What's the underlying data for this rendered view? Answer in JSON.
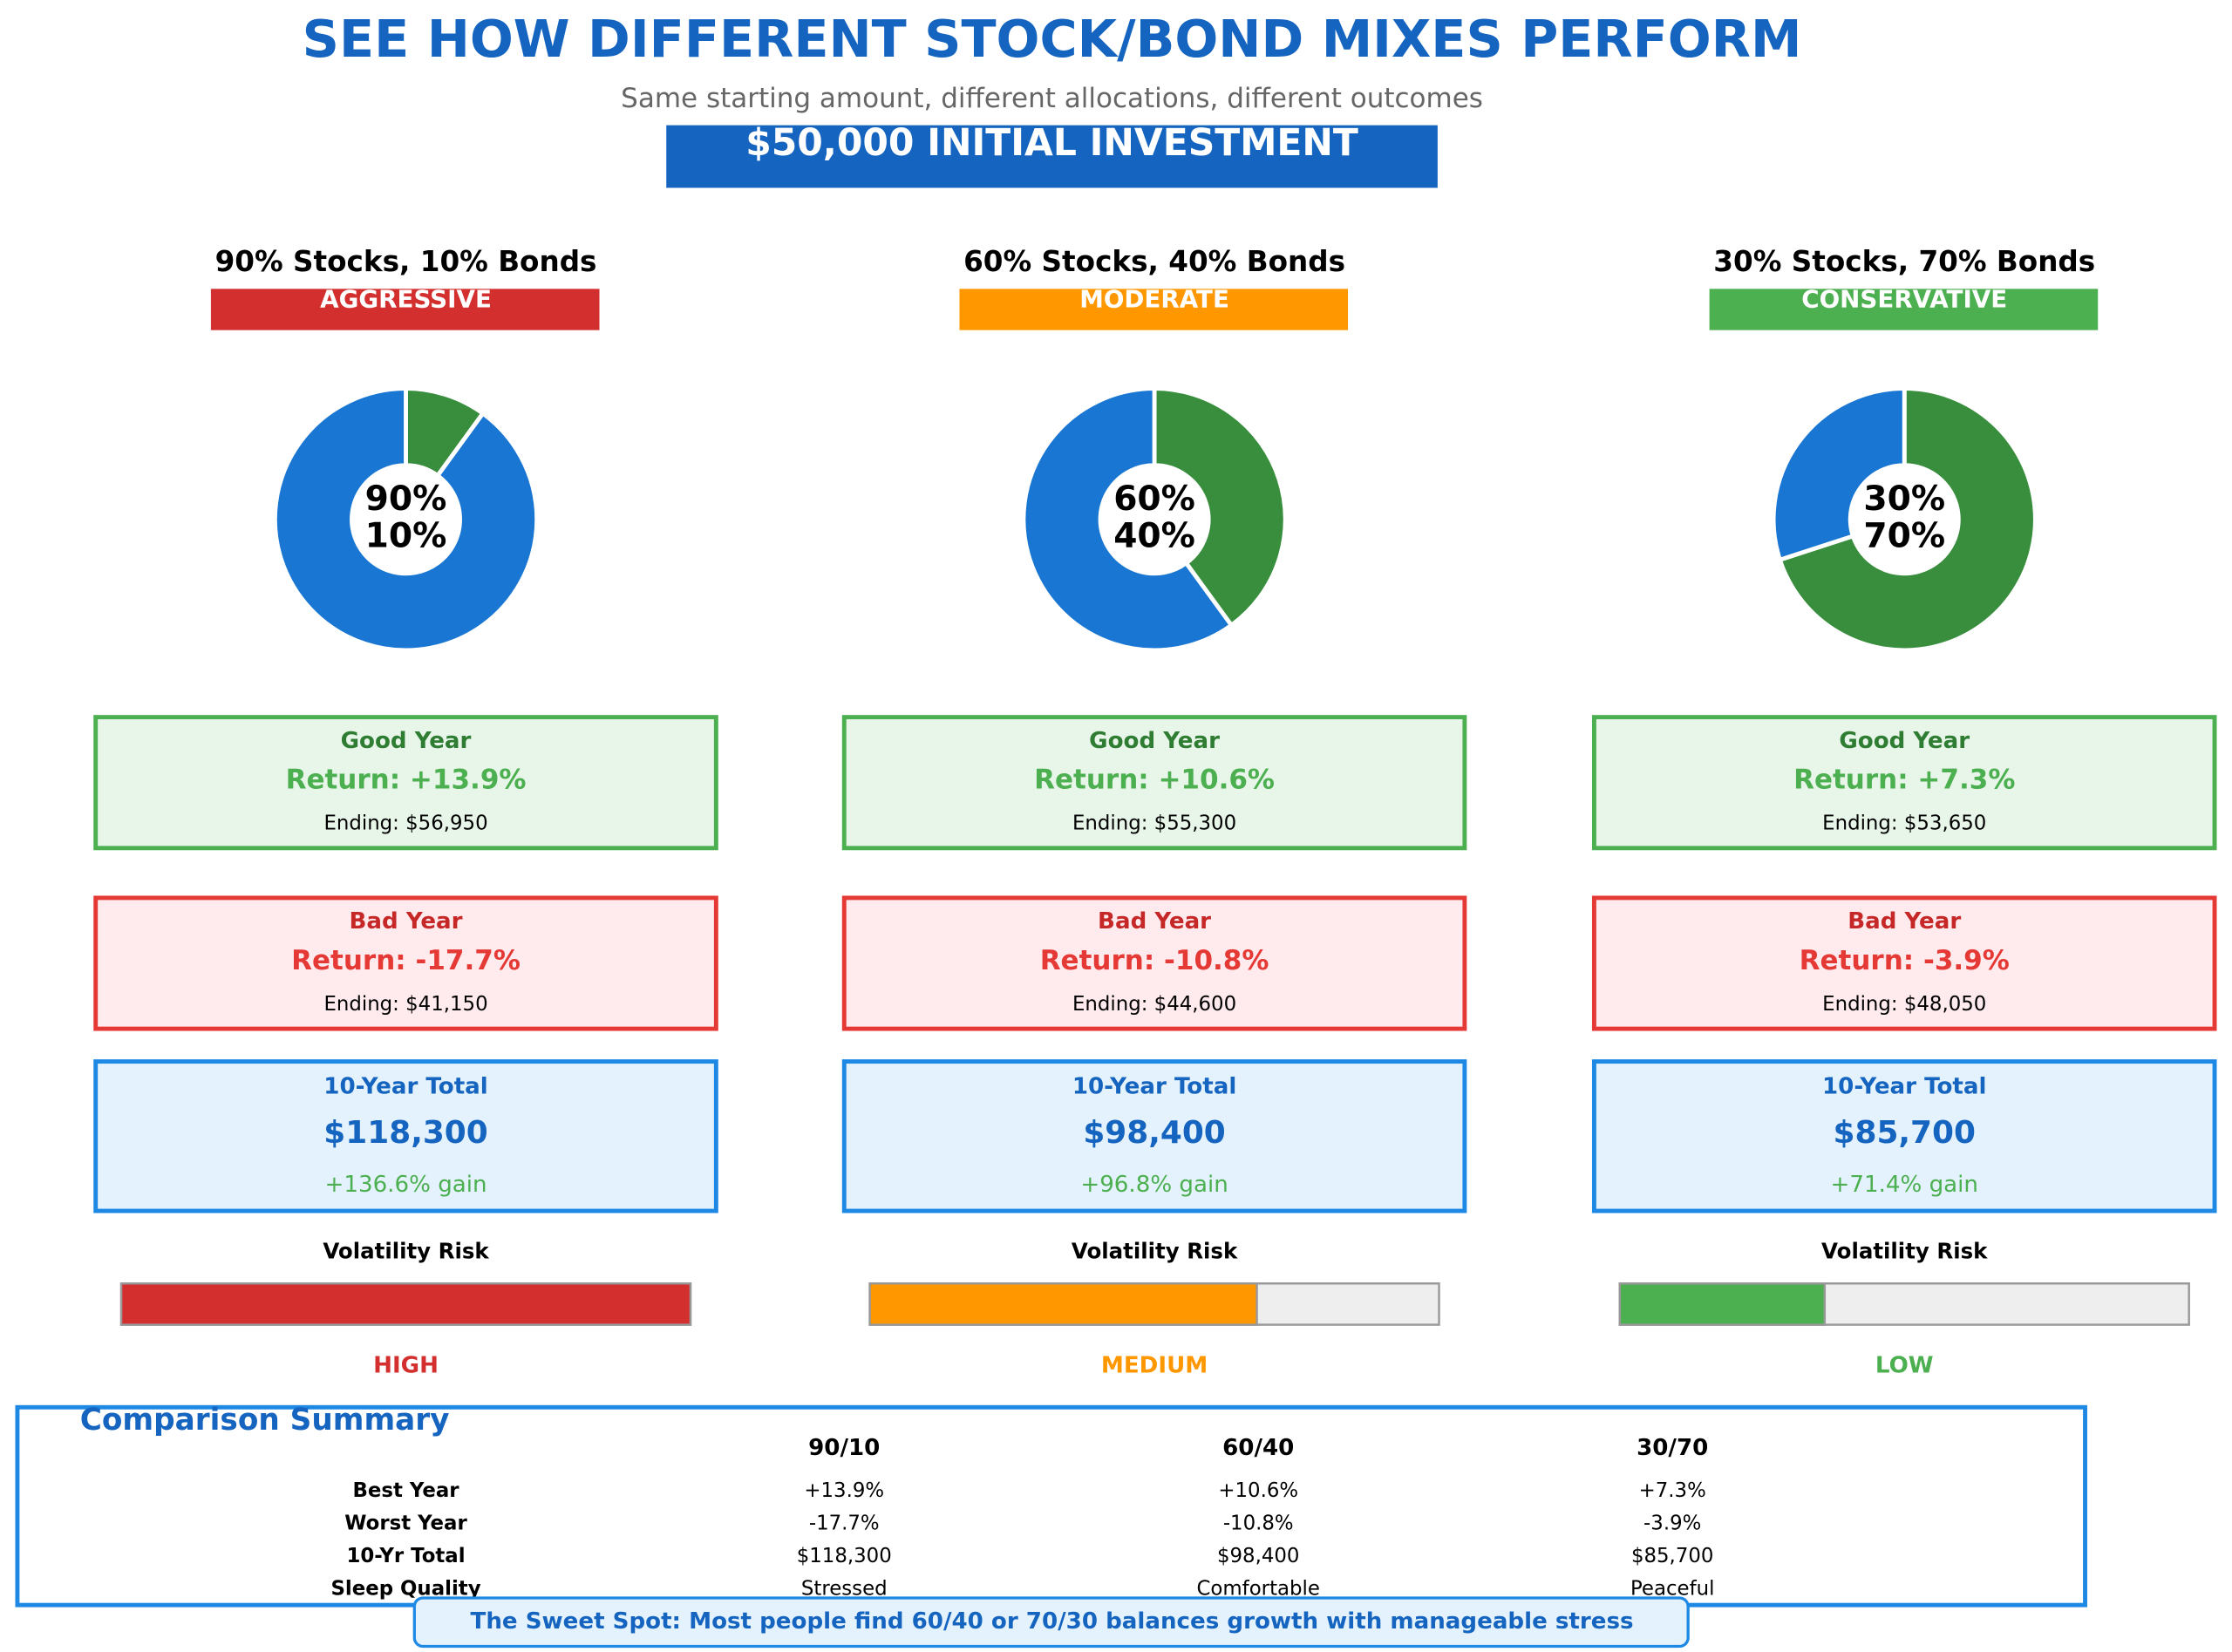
{
  "header": {
    "title": "SEE HOW DIFFERENT STOCK/BOND MIXES PERFORM",
    "subtitle": "Same starting amount, different allocations, different outcomes",
    "banner": "$50,000 INITIAL INVESTMENT"
  },
  "chart_data": [
    {
      "type": "pie",
      "values": [
        90,
        10
      ],
      "value_labels": [
        "90%",
        "10%"
      ],
      "colors": [
        "#1976d2",
        "#388e3c"
      ]
    },
    {
      "type": "pie",
      "values": [
        60,
        40
      ],
      "value_labels": [
        "60%",
        "40%"
      ],
      "colors": [
        "#1976d2",
        "#388e3c"
      ]
    },
    {
      "type": "pie",
      "values": [
        30,
        70
      ],
      "value_labels": [
        "30%",
        "70%"
      ],
      "colors": [
        "#1976d2",
        "#388e3c"
      ]
    }
  ],
  "portfolios": [
    {
      "title": "90% Stocks, 10% Bonds",
      "label": "AGGRESSIVE",
      "color": "#d32f2f",
      "good": {
        "heading": "Good Year",
        "return": "Return: +13.9%",
        "ending": "Ending: $56,950"
      },
      "bad": {
        "heading": "Bad Year",
        "return": "Return: -17.7%",
        "ending": "Ending: $41,150"
      },
      "total": {
        "heading": "10-Year Total",
        "value": "$118,300",
        "gain": "+136.6% gain"
      },
      "risk": {
        "label": "Volatility Risk",
        "value": 100,
        "xlim": [
          0,
          100
        ],
        "level": "HIGH"
      }
    },
    {
      "title": "60% Stocks, 40% Bonds",
      "label": "MODERATE",
      "color": "#ff9800",
      "good": {
        "heading": "Good Year",
        "return": "Return: +10.6%",
        "ending": "Ending: $55,300"
      },
      "bad": {
        "heading": "Bad Year",
        "return": "Return: -10.8%",
        "ending": "Ending: $44,600"
      },
      "total": {
        "heading": "10-Year Total",
        "value": "$98,400",
        "gain": "+96.8% gain"
      },
      "risk": {
        "label": "Volatility Risk",
        "value": 68,
        "xlim": [
          0,
          100
        ],
        "level": "MEDIUM"
      }
    },
    {
      "title": "30% Stocks, 70% Bonds",
      "label": "CONSERVATIVE",
      "color": "#4caf50",
      "good": {
        "heading": "Good Year",
        "return": "Return: +7.3%",
        "ending": "Ending: $53,650"
      },
      "bad": {
        "heading": "Bad Year",
        "return": "Return: -3.9%",
        "ending": "Ending: $48,050"
      },
      "total": {
        "heading": "10-Year Total",
        "value": "$85,700",
        "gain": "+71.4% gain"
      },
      "risk": {
        "label": "Volatility Risk",
        "value": 36,
        "xlim": [
          0,
          100
        ],
        "level": "LOW"
      }
    }
  ],
  "summary": {
    "title": "Comparison Summary",
    "columns": [
      "90/10",
      "60/40",
      "30/70"
    ],
    "rows": [
      {
        "label": "Best Year",
        "values": [
          "+13.9%",
          "+10.6%",
          "+7.3%"
        ]
      },
      {
        "label": "Worst Year",
        "values": [
          "-17.7%",
          "-10.8%",
          "-3.9%"
        ]
      },
      {
        "label": "10-Yr Total",
        "values": [
          "$118,300",
          "$98,400",
          "$85,700"
        ]
      },
      {
        "label": "Sleep Quality",
        "values": [
          "Stressed",
          "Comfortable",
          "Peaceful"
        ]
      }
    ]
  },
  "footer": "The Sweet Spot: Most people find 60/40 or 70/30 balances growth with manageable stress"
}
